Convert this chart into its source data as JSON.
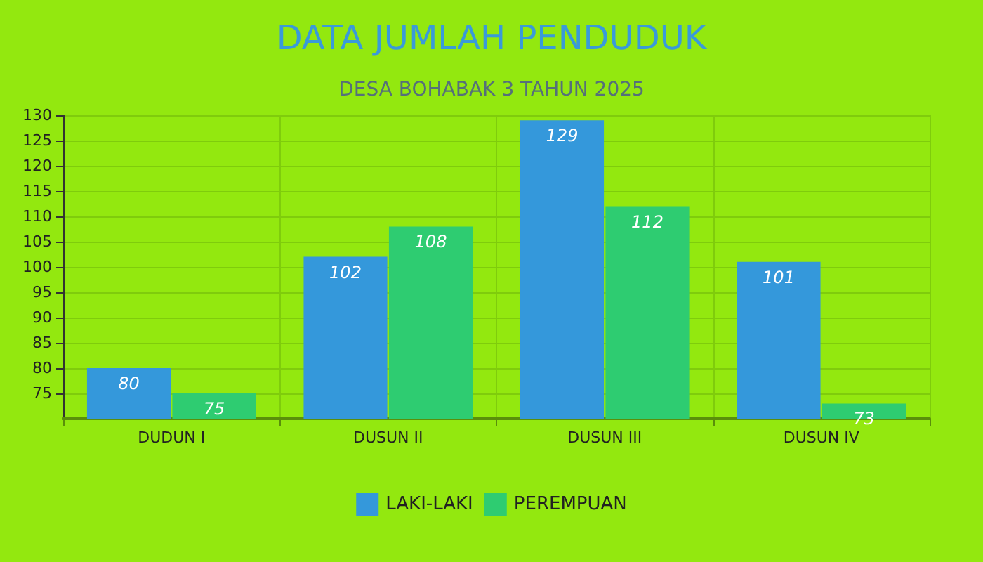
{
  "chart_data": {
    "type": "bar",
    "title": "DATA JUMLAH PENDUDUK",
    "subtitle": "DESA BOHABAK 3 TAHUN 2025",
    "categories": [
      "DUDUN I",
      "DUSUN II",
      "DUSUN III",
      "DUSUN IV"
    ],
    "series": [
      {
        "name": "LAKI-LAKI",
        "color": "#3498db",
        "values": [
          80,
          102,
          129,
          101
        ]
      },
      {
        "name": "PEREMPUAN",
        "color": "#2ecc71",
        "values": [
          75,
          108,
          112,
          73
        ]
      }
    ],
    "ylim": [
      70,
      130
    ],
    "yticks": [
      75,
      80,
      85,
      90,
      95,
      100,
      105,
      110,
      115,
      120,
      125,
      130
    ],
    "grid": true,
    "legend": "bottom",
    "data_labels": true
  }
}
